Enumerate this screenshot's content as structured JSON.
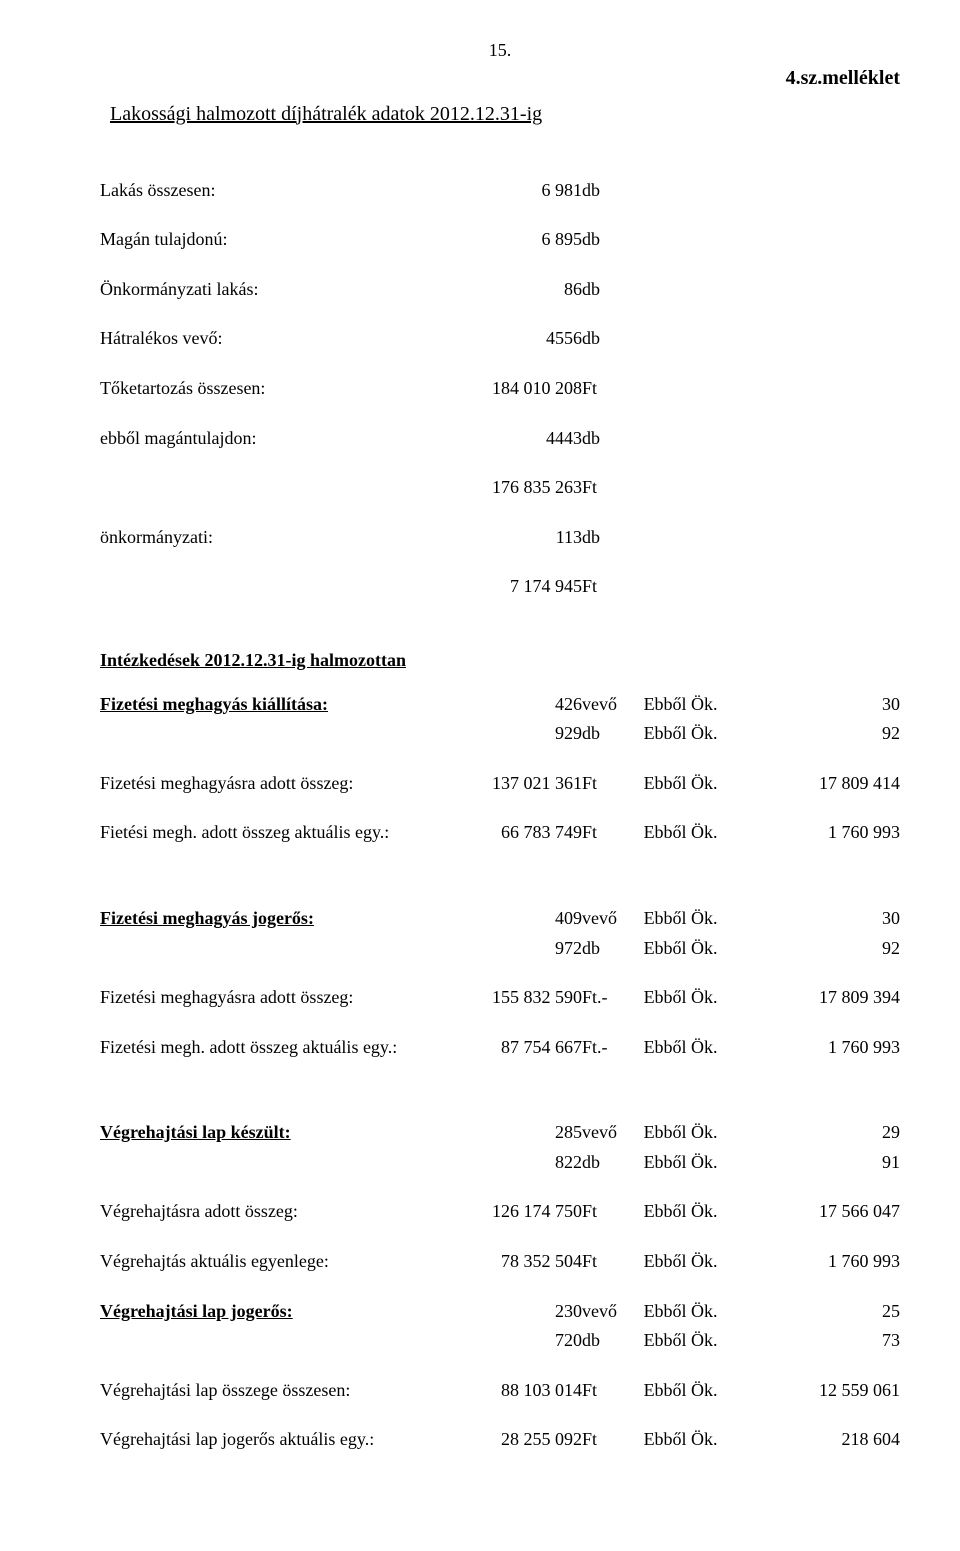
{
  "page_number": "15.",
  "annex": "4.sz.melléklet",
  "title": "Lakossági halmozott díjhátralék adatok 2012.12.31-ig",
  "summary": {
    "rows": [
      {
        "label": "Lakás összesen:",
        "value": "6 981",
        "unit": "db",
        "indent": false
      },
      {
        "label": "Magán tulajdonú:",
        "value": "6 895",
        "unit": "db",
        "indent": false
      },
      {
        "label": "Önkormányzati lakás:",
        "value": "86",
        "unit": "db",
        "indent": false
      },
      {
        "label": "Hátralékos vevő:",
        "value": "4556",
        "unit": "db",
        "indent": false
      },
      {
        "label": "Tőketartozás összesen:",
        "value": "184 010 208",
        "unit": "Ft",
        "indent": false
      },
      {
        "label": "ebből magántulajdon:",
        "value": "4443",
        "unit": "db",
        "indent": true
      },
      {
        "label": "",
        "value": "176 835 263",
        "unit": "Ft",
        "indent": false
      },
      {
        "label": "önkormányzati:",
        "value": "113",
        "unit": "db",
        "indent": true
      },
      {
        "label": "",
        "value": "7 174 945",
        "unit": "Ft",
        "indent": false
      }
    ]
  },
  "intez_heading": "Intézkedések  2012.12.31-ig halmozottan",
  "ebb_label": "Ebből Ök.",
  "groups": [
    {
      "rows": [
        {
          "label": "Fizetési meghagyás kiállítása:",
          "value": "426",
          "unit": "vevő",
          "right": "30",
          "bold": true,
          "underline": true
        },
        {
          "label": "",
          "value": "929",
          "unit": "db",
          "right": "92",
          "bold": false,
          "underline": false
        },
        {
          "gap": true
        },
        {
          "label": "Fizetési meghagyásra adott összeg:",
          "value": "137 021 361",
          "unit": "Ft",
          "right": "17 809 414",
          "bold": false,
          "underline": false
        },
        {
          "gap": true
        },
        {
          "label": "Fietési megh. adott összeg aktuális egy.:",
          "value": "66 783 749",
          "unit": "Ft",
          "right": "1 760 993",
          "bold": false,
          "underline": false
        }
      ]
    },
    {
      "rows": [
        {
          "label": "Fizetési meghagyás jogerős:",
          "value": "409",
          "unit": "vevő",
          "right": "30",
          "bold": true,
          "underline": true
        },
        {
          "label": "",
          "value": "972",
          "unit": "db",
          "right": "92",
          "bold": false,
          "underline": false
        },
        {
          "gap": true
        },
        {
          "label": "Fizetési meghagyásra adott összeg:",
          "value": "155 832 590",
          "unit": "Ft.-",
          "right": "17 809 394",
          "bold": false,
          "underline": false
        },
        {
          "gap": true
        },
        {
          "label": "Fizetési megh. adott összeg aktuális egy.:",
          "value": "87 754 667",
          "unit": "Ft.-",
          "right": "1 760 993",
          "bold": false,
          "underline": false
        }
      ]
    },
    {
      "rows": [
        {
          "label": "Végrehajtási lap készült:",
          "value": "285",
          "unit": "vevő",
          "right": "29",
          "bold": true,
          "underline": true
        },
        {
          "label": "",
          "value": "822",
          "unit": "db",
          "right": "91",
          "bold": false,
          "underline": false
        },
        {
          "gap": true
        },
        {
          "label": "Végrehajtásra adott összeg:",
          "value": "126 174 750",
          "unit": "Ft",
          "right": "17 566 047",
          "bold": false,
          "underline": false
        },
        {
          "gap": true
        },
        {
          "label": "Végrehajtás aktuális egyenlege:",
          "value": "78 352 504",
          "unit": "Ft",
          "right": "1 760 993",
          "bold": false,
          "underline": false
        },
        {
          "gap": true
        },
        {
          "label": "Végrehajtási lap jogerős:",
          "value": "230",
          "unit": "vevő",
          "right": "25",
          "bold": true,
          "underline": true
        },
        {
          "label": "",
          "value": "720",
          "unit": "db",
          "right": "73",
          "bold": false,
          "underline": false
        },
        {
          "gap": true
        },
        {
          "label": "Végrehajtási lap összege összesen:",
          "value": "88 103 014",
          "unit": "Ft",
          "right": "12 559 061",
          "bold": false,
          "underline": false
        },
        {
          "gap": true
        },
        {
          "label": "Végrehajtási lap jogerős aktuális egy.:",
          "value": "28 255 092",
          "unit": "Ft",
          "right": "218 604",
          "bold": false,
          "underline": false
        }
      ]
    }
  ]
}
